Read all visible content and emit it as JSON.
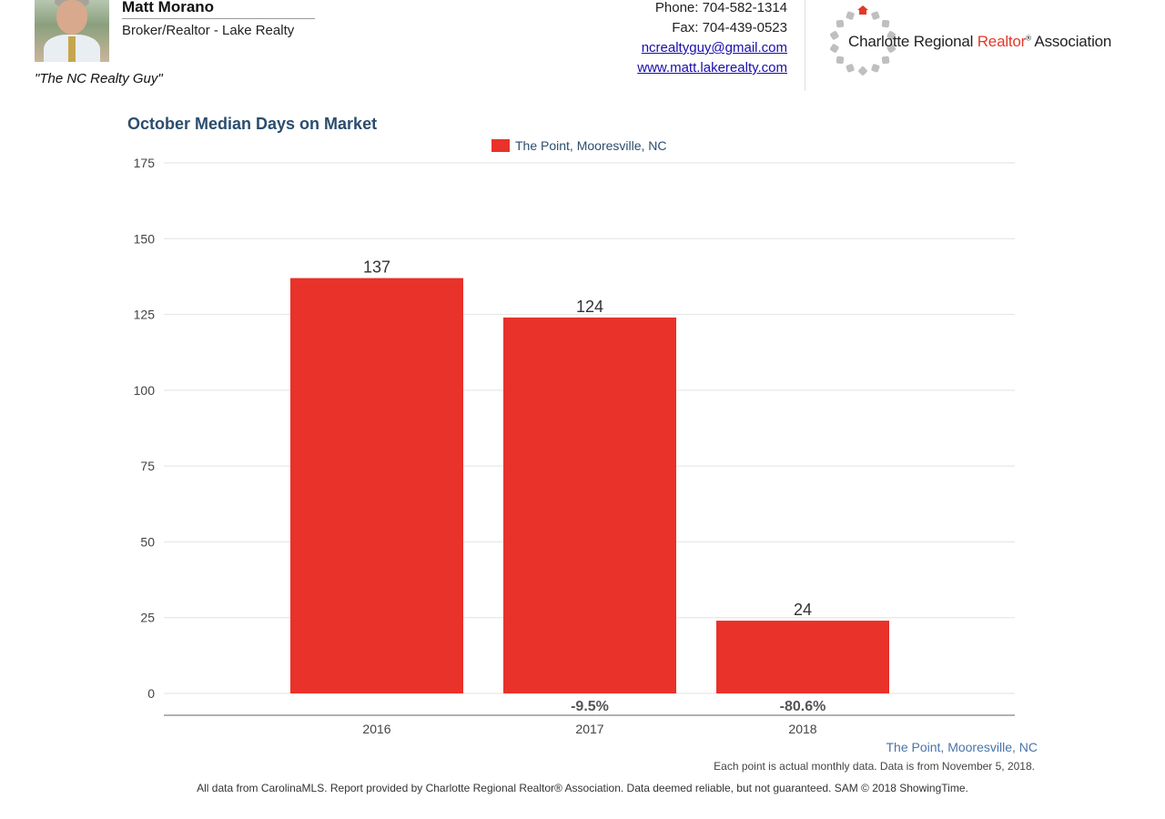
{
  "header": {
    "agent_name": "Matt Morano",
    "agent_title": "Broker/Realtor - Lake Realty",
    "tagline": "\"The NC Realty Guy\"",
    "phone": "Phone: 704-582-1314",
    "fax": "Fax: 704-439-0523",
    "email": "ncrealtyguy@gmail.com",
    "website": "www.matt.lakerealty.com",
    "association_prefix": "Charlotte Regional ",
    "association_highlight": "Realtor",
    "association_mark": "®",
    "association_suffix": " Association"
  },
  "chart_data": {
    "type": "bar",
    "title": "October Median Days on Market",
    "legend_position": "top-center",
    "categories": [
      "2016",
      "2017",
      "2018"
    ],
    "series": [
      {
        "name": "The Point, Mooresville, NC",
        "color": "#e8322a",
        "values": [
          137,
          124,
          24
        ]
      }
    ],
    "pct_changes": [
      "",
      "-9.5%",
      "-80.6%"
    ],
    "ylim": [
      0,
      175
    ],
    "yticks": [
      0,
      25,
      50,
      75,
      100,
      125,
      150,
      175
    ],
    "grid": true
  },
  "footer": {
    "series_note": "The Point, Mooresville, NC",
    "data_note": "Each point is actual monthly data. Data is from November 5, 2018.",
    "disclaimer": "All data from CarolinaMLS. Report provided by Charlotte Regional Realtor® Association. Data deemed reliable, but not guaranteed. SAM © 2018 ShowingTime."
  },
  "colors": {
    "title": "#2b4d6e",
    "bar": "#e8322a",
    "note": "#4a74a8"
  },
  "icons": {
    "agent_photo": "agent-photo",
    "association_logo": "gear-ring-house-logo"
  }
}
